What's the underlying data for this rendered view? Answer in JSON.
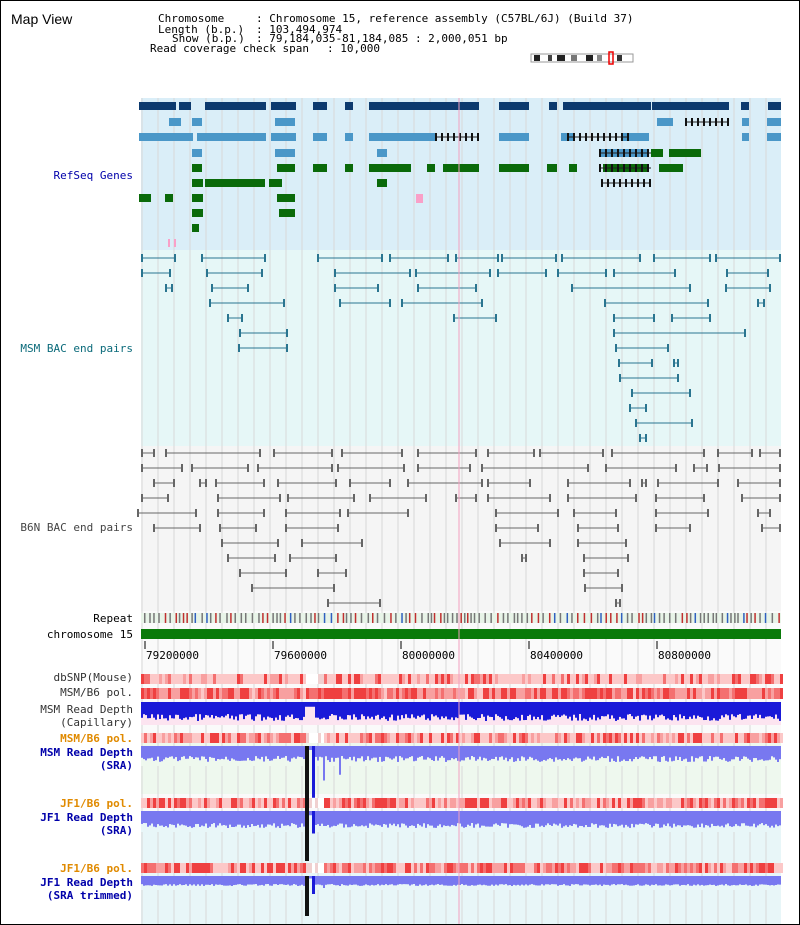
{
  "title": "Map View",
  "header": {
    "chromosome_label": "Chromosome",
    "chromosome_value": ": Chromosome 15, reference assembly (C57BL/6J) (Build 37)",
    "length_label": "Length (b.p.)",
    "length_value": ": 103,494,974",
    "show_label": "Show (b.p.)",
    "show_value": ": 79,184,035-81,184,085 : 2,000,051 bp",
    "coverage_label": "Read coverage check span",
    "coverage_value": ": 10,000"
  },
  "tracks": {
    "refseq": "RefSeq Genes",
    "msm_bac": "MSM BAC end pairs",
    "b6n_bac": "B6N BAC end pairs",
    "repeat": "Repeat",
    "chromosome": "chromosome 15",
    "dbsnp": "dbSNP(Mouse)",
    "msm_b6_pol_1": "MSM/B6 pol.",
    "msm_depth_cap_1": "MSM Read Depth",
    "msm_depth_cap_2": "(Capillary)",
    "msm_b6_pol_2": "MSM/B6 pol.",
    "msm_depth_sra_1": "MSM Read Depth",
    "msm_depth_sra_2": "(SRA)",
    "jf1_b6_pol_1": "JF1/B6 pol.",
    "jf1_depth_sra_1": "JF1 Read Depth",
    "jf1_depth_sra_2": "(SRA)",
    "jf1_b6_pol_2": "JF1/B6 pol.",
    "jf1_depth_trim_1": "JF1 Read Depth",
    "jf1_depth_trim_2": "(SRA trimmed)"
  },
  "axis_ticks": [
    "79200000",
    "79600000",
    "80000000",
    "80400000",
    "80800000"
  ],
  "colors": {
    "refseq_bg": "#daeef8",
    "msm_bg": "#e6f7f7",
    "b6n_bg": "#f5f5f5",
    "dark_blue": "#0d3a6e",
    "mid_blue": "#4a97c8",
    "green": "#0a6a0a",
    "teal": "#2a7590",
    "gray": "#666666",
    "depth_blue": "#1a1ad8",
    "depth_light": "#7878f0",
    "label_blue": "#0000aa",
    "label_orange": "#e08a00"
  }
}
